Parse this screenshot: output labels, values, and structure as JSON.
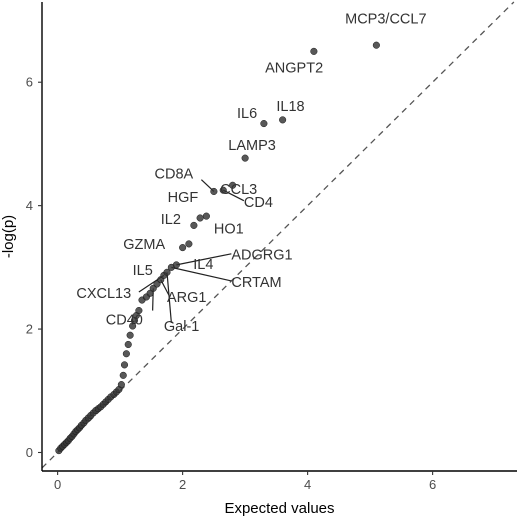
{
  "chart_data": {
    "type": "scatter",
    "xlabel": "Expected values",
    "ylabel": "-log(p)",
    "xlim": [
      -0.25,
      7.35
    ],
    "ylim": [
      -0.3,
      7.3
    ],
    "xticks": [
      0,
      2,
      4,
      6
    ],
    "yticks": [
      0,
      2,
      4,
      6
    ],
    "grid": false,
    "reference_line": {
      "type": "identity",
      "style": "dashed"
    },
    "point_color": "#333333",
    "points": [
      {
        "x": 0.02,
        "y": 0.03
      },
      {
        "x": 0.05,
        "y": 0.07
      },
      {
        "x": 0.08,
        "y": 0.1
      },
      {
        "x": 0.11,
        "y": 0.13
      },
      {
        "x": 0.14,
        "y": 0.16
      },
      {
        "x": 0.17,
        "y": 0.19
      },
      {
        "x": 0.2,
        "y": 0.23
      },
      {
        "x": 0.23,
        "y": 0.26
      },
      {
        "x": 0.26,
        "y": 0.3
      },
      {
        "x": 0.29,
        "y": 0.34
      },
      {
        "x": 0.32,
        "y": 0.37
      },
      {
        "x": 0.35,
        "y": 0.4
      },
      {
        "x": 0.38,
        "y": 0.44
      },
      {
        "x": 0.42,
        "y": 0.48
      },
      {
        "x": 0.45,
        "y": 0.52
      },
      {
        "x": 0.49,
        "y": 0.56
      },
      {
        "x": 0.53,
        "y": 0.6
      },
      {
        "x": 0.57,
        "y": 0.64
      },
      {
        "x": 0.61,
        "y": 0.68
      },
      {
        "x": 0.65,
        "y": 0.71
      },
      {
        "x": 0.69,
        "y": 0.74
      },
      {
        "x": 0.73,
        "y": 0.78
      },
      {
        "x": 0.77,
        "y": 0.82
      },
      {
        "x": 0.81,
        "y": 0.86
      },
      {
        "x": 0.85,
        "y": 0.9
      },
      {
        "x": 0.9,
        "y": 0.94
      },
      {
        "x": 0.94,
        "y": 0.98
      },
      {
        "x": 0.98,
        "y": 1.02
      },
      {
        "x": 1.02,
        "y": 1.1
      },
      {
        "x": 1.05,
        "y": 1.25
      },
      {
        "x": 1.07,
        "y": 1.42
      },
      {
        "x": 1.1,
        "y": 1.6
      },
      {
        "x": 1.13,
        "y": 1.75
      },
      {
        "x": 1.16,
        "y": 1.9
      },
      {
        "x": 1.2,
        "y": 2.05
      },
      {
        "x": 1.23,
        "y": 2.14
      },
      {
        "x": 1.26,
        "y": 2.22
      },
      {
        "x": 1.3,
        "y": 2.3
      },
      {
        "x": 1.35,
        "y": 2.47
      },
      {
        "x": 1.42,
        "y": 2.52
      },
      {
        "x": 1.48,
        "y": 2.58
      },
      {
        "x": 1.53,
        "y": 2.66
      },
      {
        "x": 1.59,
        "y": 2.73
      },
      {
        "x": 1.65,
        "y": 2.8
      },
      {
        "x": 1.7,
        "y": 2.87
      },
      {
        "x": 1.75,
        "y": 2.92
      },
      {
        "x": 1.82,
        "y": 3.0
      },
      {
        "x": 1.9,
        "y": 3.04
      },
      {
        "x": 2.0,
        "y": 3.32
      },
      {
        "x": 2.1,
        "y": 3.38
      },
      {
        "x": 2.18,
        "y": 3.68
      },
      {
        "x": 2.28,
        "y": 3.8
      },
      {
        "x": 2.38,
        "y": 3.83
      },
      {
        "x": 2.5,
        "y": 4.23
      },
      {
        "x": 2.65,
        "y": 4.25
      },
      {
        "x": 2.8,
        "y": 4.33
      },
      {
        "x": 3.0,
        "y": 4.77
      },
      {
        "x": 3.3,
        "y": 5.33
      },
      {
        "x": 3.6,
        "y": 5.39
      },
      {
        "x": 4.1,
        "y": 6.5
      },
      {
        "x": 5.1,
        "y": 6.6
      }
    ],
    "annotations": [
      {
        "text": "MCP3/CCL7",
        "x": 4.6,
        "y": 6.95,
        "anchor": "start"
      },
      {
        "text": "ANGPT2",
        "x": 3.32,
        "y": 6.16,
        "anchor": "start"
      },
      {
        "text": "IL6",
        "x": 2.87,
        "y": 5.42,
        "anchor": "start"
      },
      {
        "text": "IL18",
        "x": 3.5,
        "y": 5.53,
        "anchor": "start"
      },
      {
        "text": "LAMP3",
        "x": 2.73,
        "y": 4.9,
        "anchor": "start"
      },
      {
        "text": "CD8A",
        "x": 1.55,
        "y": 4.44,
        "anchor": "start"
      },
      {
        "text": "CCL3",
        "x": 2.6,
        "y": 4.19,
        "anchor": "start"
      },
      {
        "text": "HGF",
        "x": 1.76,
        "y": 4.06,
        "anchor": "start"
      },
      {
        "text": "CD4",
        "x": 2.98,
        "y": 3.98,
        "anchor": "start"
      },
      {
        "text": "IL2",
        "x": 1.65,
        "y": 3.7,
        "anchor": "start"
      },
      {
        "text": "HO1",
        "x": 2.5,
        "y": 3.55,
        "anchor": "start"
      },
      {
        "text": "GZMA",
        "x": 1.05,
        "y": 3.3,
        "anchor": "start"
      },
      {
        "text": "ADGRG1",
        "x": 2.78,
        "y": 3.13,
        "anchor": "start"
      },
      {
        "text": "IL5",
        "x": 1.2,
        "y": 2.88,
        "anchor": "start"
      },
      {
        "text": "IL4",
        "x": 2.17,
        "y": 2.97,
        "anchor": "start"
      },
      {
        "text": "CRTAM",
        "x": 2.78,
        "y": 2.68,
        "anchor": "start"
      },
      {
        "text": "CXCL13",
        "x": 0.3,
        "y": 2.5,
        "anchor": "start"
      },
      {
        "text": "ARG1",
        "x": 1.75,
        "y": 2.44,
        "anchor": "start"
      },
      {
        "text": "CD40",
        "x": 0.77,
        "y": 2.07,
        "anchor": "start"
      },
      {
        "text": "Gal-1",
        "x": 1.7,
        "y": 1.97,
        "anchor": "start"
      }
    ],
    "leaders": [
      {
        "x1": 2.5,
        "y1": 4.23,
        "x2": 2.3,
        "y2": 4.42
      },
      {
        "x1": 2.65,
        "y1": 4.25,
        "x2": 2.98,
        "y2": 4.08
      },
      {
        "x1": 1.9,
        "y1": 3.04,
        "x2": 2.78,
        "y2": 3.22
      },
      {
        "x1": 1.82,
        "y1": 3.0,
        "x2": 2.78,
        "y2": 2.78
      },
      {
        "x1": 1.65,
        "y1": 2.8,
        "x2": 1.78,
        "y2": 2.55
      },
      {
        "x1": 1.53,
        "y1": 2.66,
        "x2": 1.52,
        "y2": 2.3
      },
      {
        "x1": 1.75,
        "y1": 2.92,
        "x2": 1.82,
        "y2": 2.1
      },
      {
        "x1": 1.7,
        "y1": 2.87,
        "x2": 1.3,
        "y2": 2.6
      }
    ]
  }
}
